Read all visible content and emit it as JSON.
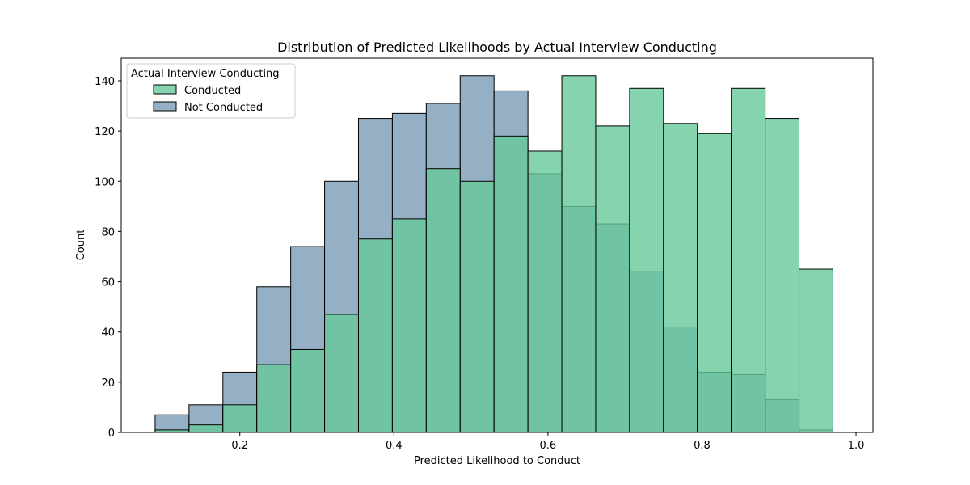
{
  "chart_data": {
    "type": "bar",
    "title": "Distribution of Predicted Likelihoods by Actual Interview Conducting",
    "xlabel": "Predicted Likelihood to Conduct",
    "ylabel": "Count",
    "xlim": [
      0.046,
      1.022
    ],
    "ylim": [
      0,
      149
    ],
    "x_ticks": [
      0.2,
      0.4,
      0.6,
      0.8,
      1.0
    ],
    "x_tick_labels": [
      "0.2",
      "0.4",
      "0.6",
      "0.8",
      "1.0"
    ],
    "y_ticks": [
      0,
      20,
      40,
      60,
      80,
      100,
      120,
      140
    ],
    "y_tick_labels": [
      "0",
      "20",
      "40",
      "60",
      "80",
      "100",
      "120",
      "140"
    ],
    "bin_edges": [
      0.09,
      0.134,
      0.178,
      0.222,
      0.266,
      0.31,
      0.354,
      0.398,
      0.442,
      0.486,
      0.53,
      0.574,
      0.618,
      0.662,
      0.706,
      0.75,
      0.794,
      0.838,
      0.882,
      0.926,
      0.97
    ],
    "grid": false,
    "legend": {
      "title": "Actual Interview Conducting",
      "placement": "top-left",
      "entries": [
        "Conducted",
        "Not Conducted"
      ]
    },
    "series": [
      {
        "name": "Not Conducted",
        "color": "#7a9cb5",
        "values": [
          7,
          11,
          24,
          58,
          74,
          100,
          125,
          127,
          131,
          142,
          136,
          103,
          90,
          83,
          64,
          42,
          24,
          23,
          13,
          1
        ]
      },
      {
        "name": "Conducted",
        "color": "#66c99b",
        "values": [
          1,
          3,
          11,
          27,
          33,
          47,
          77,
          85,
          105,
          100,
          118,
          112,
          142,
          122,
          137,
          123,
          119,
          137,
          125,
          65
        ]
      }
    ]
  }
}
